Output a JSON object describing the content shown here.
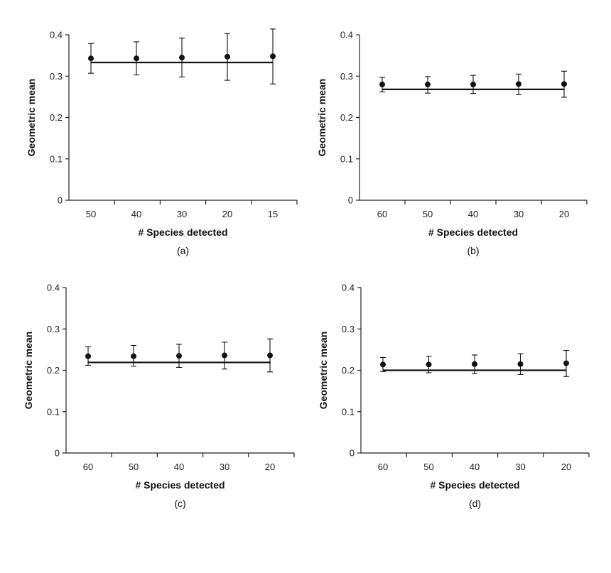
{
  "chart_data": [
    {
      "type": "scatter",
      "panel_label": "(a)",
      "xlabel": "# Species detected",
      "ylabel": "Geometric mean",
      "categories": [
        "50",
        "40",
        "30",
        "20",
        "15"
      ],
      "ylim": [
        0,
        0.4
      ],
      "yticks": [
        "0",
        "0.1",
        "0.2",
        "0.3",
        "0.4"
      ],
      "values": [
        0.343,
        0.343,
        0.345,
        0.347,
        0.348
      ],
      "error_low": [
        0.307,
        0.303,
        0.298,
        0.29,
        0.281
      ],
      "error_high": [
        0.379,
        0.383,
        0.392,
        0.403,
        0.414
      ],
      "reference_line": 0.333,
      "grid": false
    },
    {
      "type": "scatter",
      "panel_label": "(b)",
      "xlabel": "# Species detected",
      "ylabel": "Geometric mean",
      "categories": [
        "60",
        "50",
        "40",
        "30",
        "20"
      ],
      "ylim": [
        0,
        0.4
      ],
      "yticks": [
        "0",
        "0.1",
        "0.2",
        "0.3",
        "0.4"
      ],
      "values": [
        0.28,
        0.28,
        0.28,
        0.281,
        0.281
      ],
      "error_low": [
        0.262,
        0.259,
        0.258,
        0.255,
        0.249
      ],
      "error_high": [
        0.297,
        0.299,
        0.302,
        0.305,
        0.312
      ],
      "reference_line": 0.268,
      "grid": false
    },
    {
      "type": "scatter",
      "panel_label": "(c)",
      "xlabel": "# Species detected",
      "ylabel": "Geometric mean",
      "categories": [
        "60",
        "50",
        "40",
        "30",
        "20"
      ],
      "ylim": [
        0,
        0.4
      ],
      "yticks": [
        "0",
        "0.1",
        "0.2",
        "0.3",
        "0.4"
      ],
      "values": [
        0.234,
        0.234,
        0.235,
        0.236,
        0.236
      ],
      "error_low": [
        0.212,
        0.21,
        0.207,
        0.203,
        0.196
      ],
      "error_high": [
        0.257,
        0.26,
        0.263,
        0.268,
        0.276
      ],
      "reference_line": 0.219,
      "grid": false
    },
    {
      "type": "scatter",
      "panel_label": "(d)",
      "xlabel": "# Species detected",
      "ylabel": "Geometric mean",
      "categories": [
        "60",
        "50",
        "40",
        "30",
        "20"
      ],
      "ylim": [
        0,
        0.4
      ],
      "yticks": [
        "0",
        "0.1",
        "0.2",
        "0.3",
        "0.4"
      ],
      "values": [
        0.214,
        0.214,
        0.215,
        0.215,
        0.217
      ],
      "error_low": [
        0.197,
        0.194,
        0.192,
        0.19,
        0.185
      ],
      "error_high": [
        0.231,
        0.234,
        0.237,
        0.24,
        0.248
      ],
      "reference_line": 0.2,
      "grid": false
    }
  ],
  "style": {
    "axis_color": "#222222",
    "marker_color": "#111111",
    "line_color": "#111111"
  }
}
